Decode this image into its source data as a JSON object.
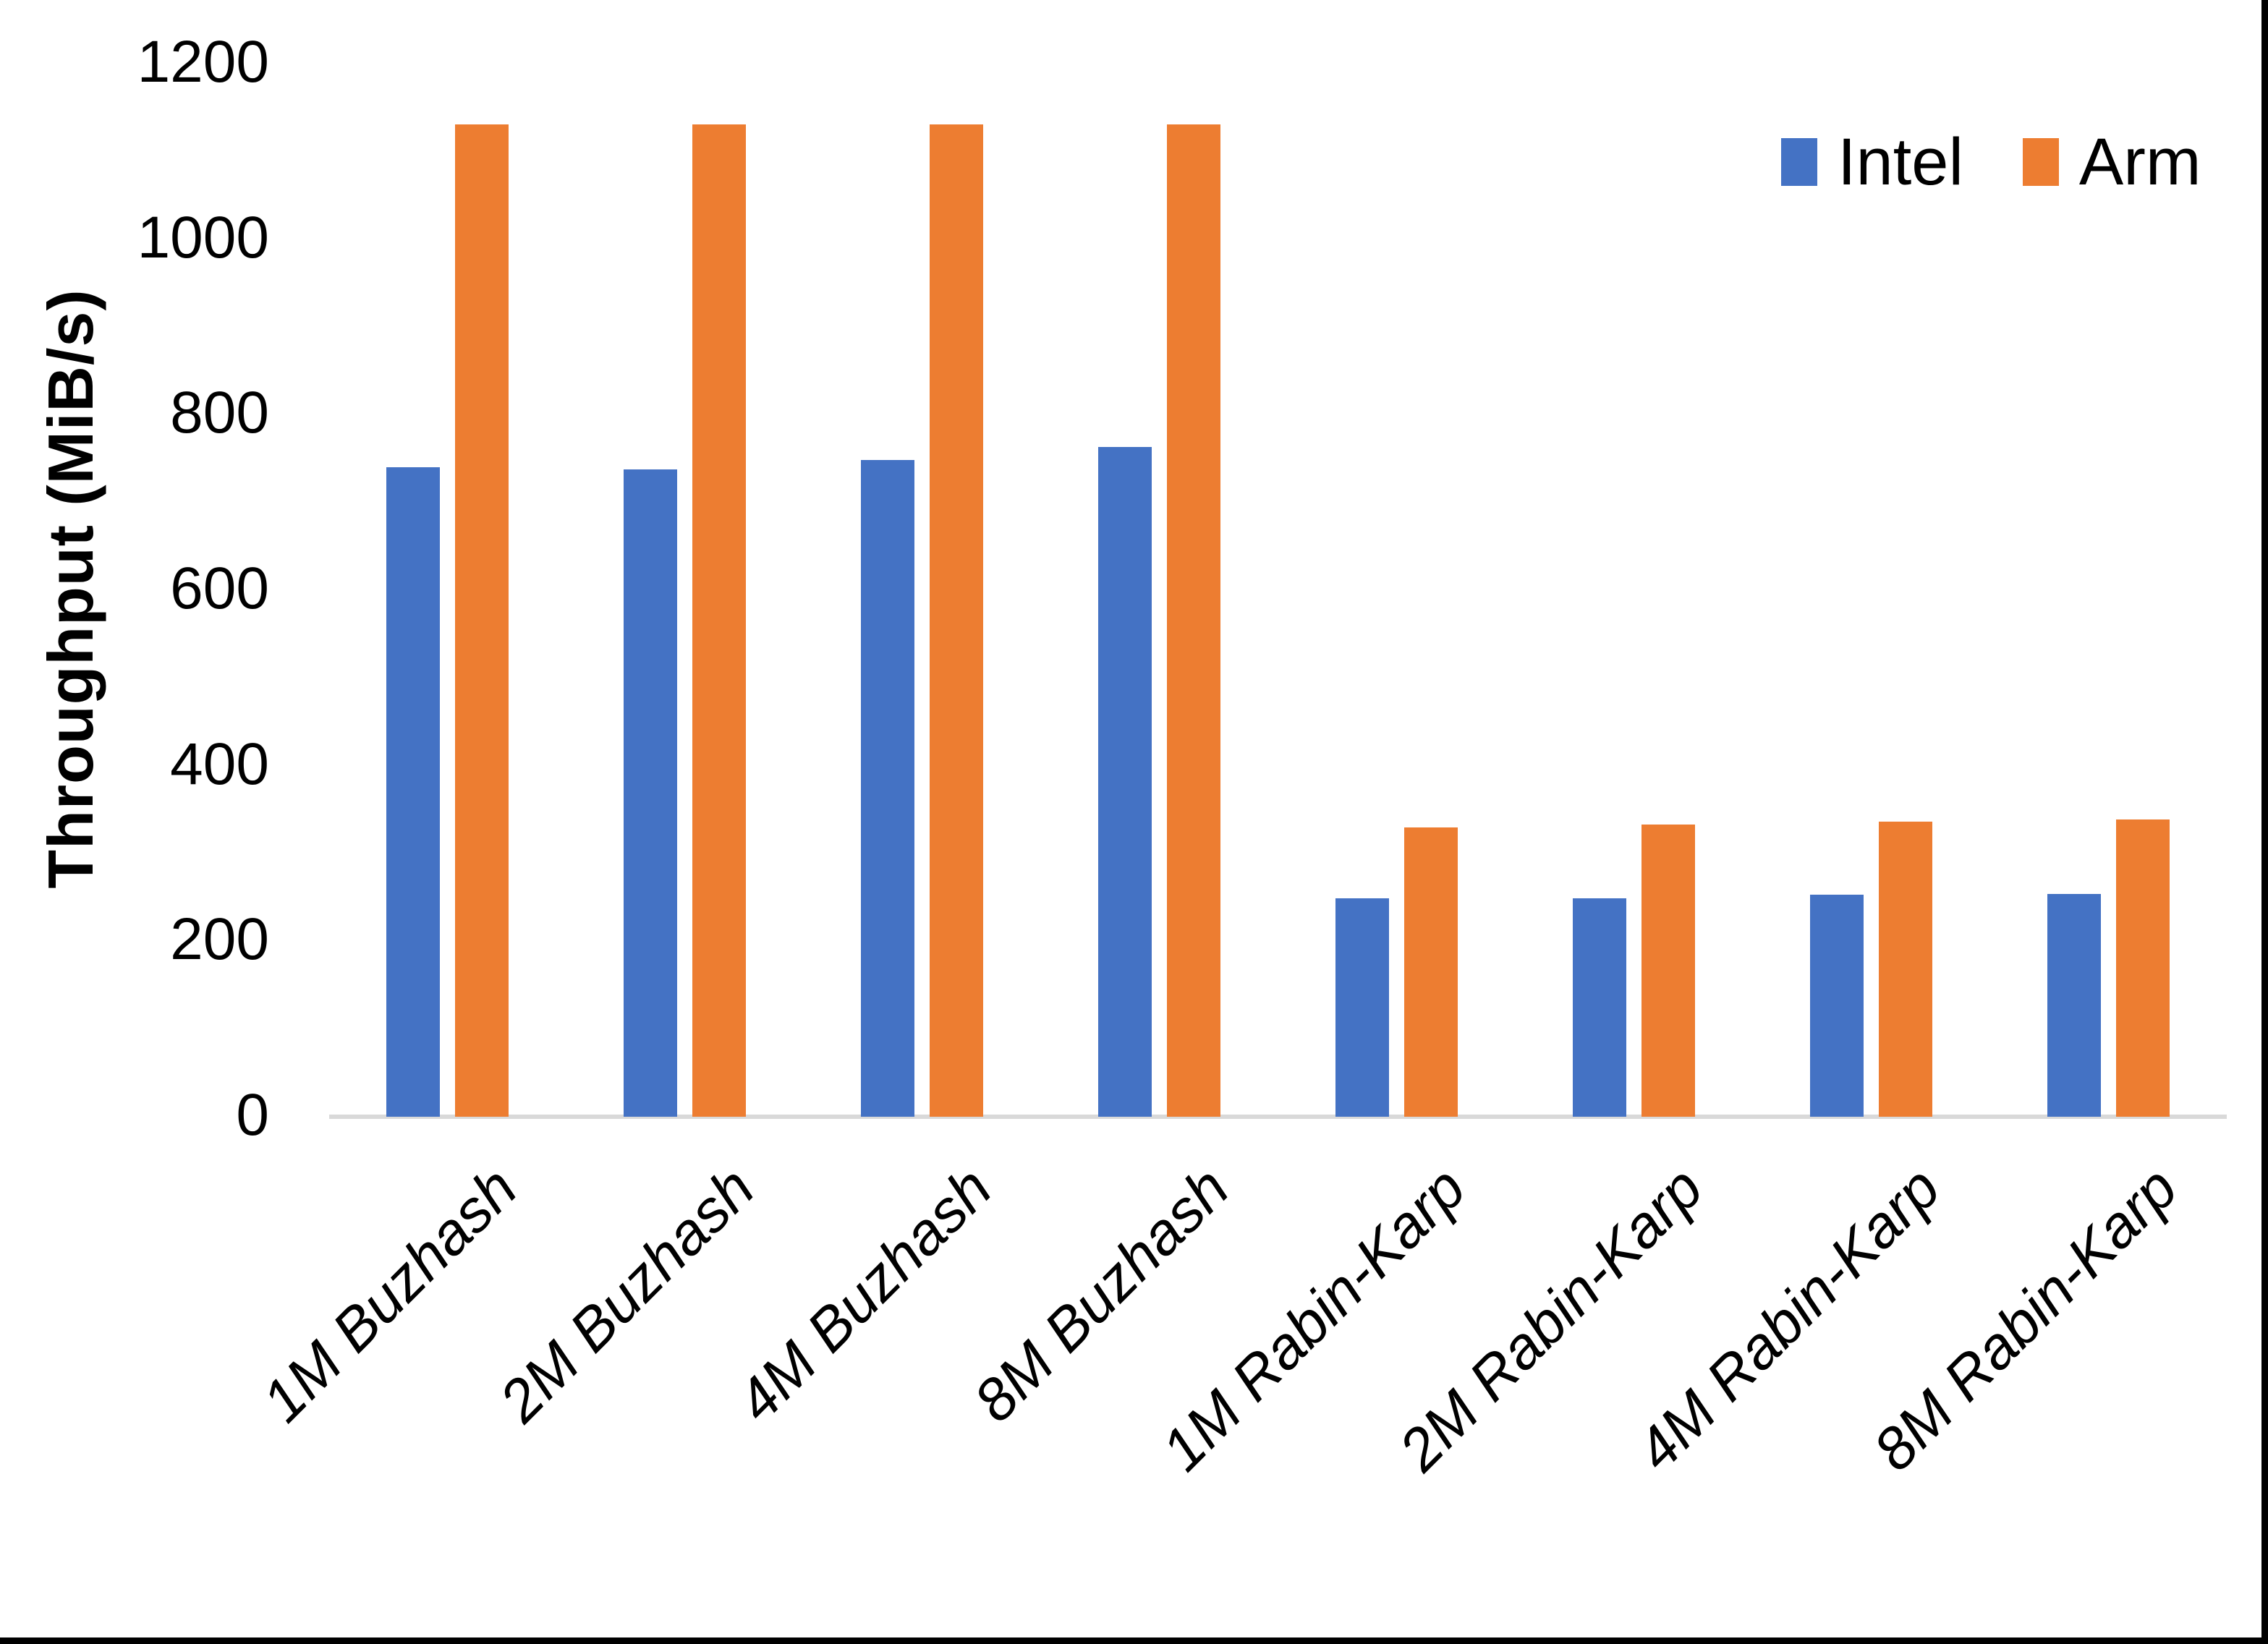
{
  "chart_data": {
    "type": "bar",
    "title": "",
    "categories": [
      "1M Buzhash",
      "2M Buzhash",
      "4M Buzhash",
      "8M Buzhash",
      "1M Rabin-Karp",
      "2M Rabin-Karp",
      "4M Rabin-Karp",
      "8M Rabin-Karp"
    ],
    "series": [
      {
        "name": "Intel",
        "color": "#4472C4",
        "values": [
          740,
          738,
          748,
          763,
          249,
          249,
          253,
          254
        ]
      },
      {
        "name": "Arm",
        "color": "#ED7D31",
        "values": [
          1131,
          1131,
          1131,
          1131,
          330,
          333,
          336,
          339
        ]
      }
    ],
    "xlabel": "",
    "ylabel": "Throughput (MiB/s)",
    "ylim": [
      0,
      1200
    ],
    "yticks": [
      0,
      200,
      400,
      600,
      800,
      1000,
      1200
    ],
    "grid": false,
    "legend_position": "top-right"
  },
  "colors": {
    "background": "#FFFFFF",
    "text": "#000000",
    "axis_line": "#D9D9D9",
    "intel_bar": "#4472C4",
    "arm_bar": "#ED7D31",
    "frame_border": "#000000"
  }
}
